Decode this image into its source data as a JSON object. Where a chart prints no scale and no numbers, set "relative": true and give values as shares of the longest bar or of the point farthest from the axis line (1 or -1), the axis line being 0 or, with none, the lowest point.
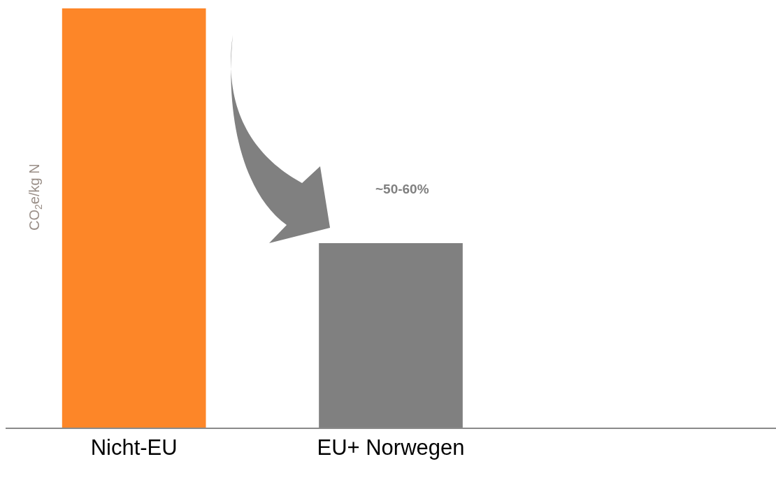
{
  "chart_data": {
    "type": "bar",
    "relative": true,
    "ylabel": "CO$_{2}$e/kg N",
    "categories": [
      "Nicht-EU",
      "EU+ Norwegen",
      null
    ],
    "values": [
      1,
      0.44,
      null
    ],
    "colors": [
      "#fd8628",
      "#808080",
      "#808080"
    ],
    "annotations": [
      "~50-60%"
    ]
  }
}
